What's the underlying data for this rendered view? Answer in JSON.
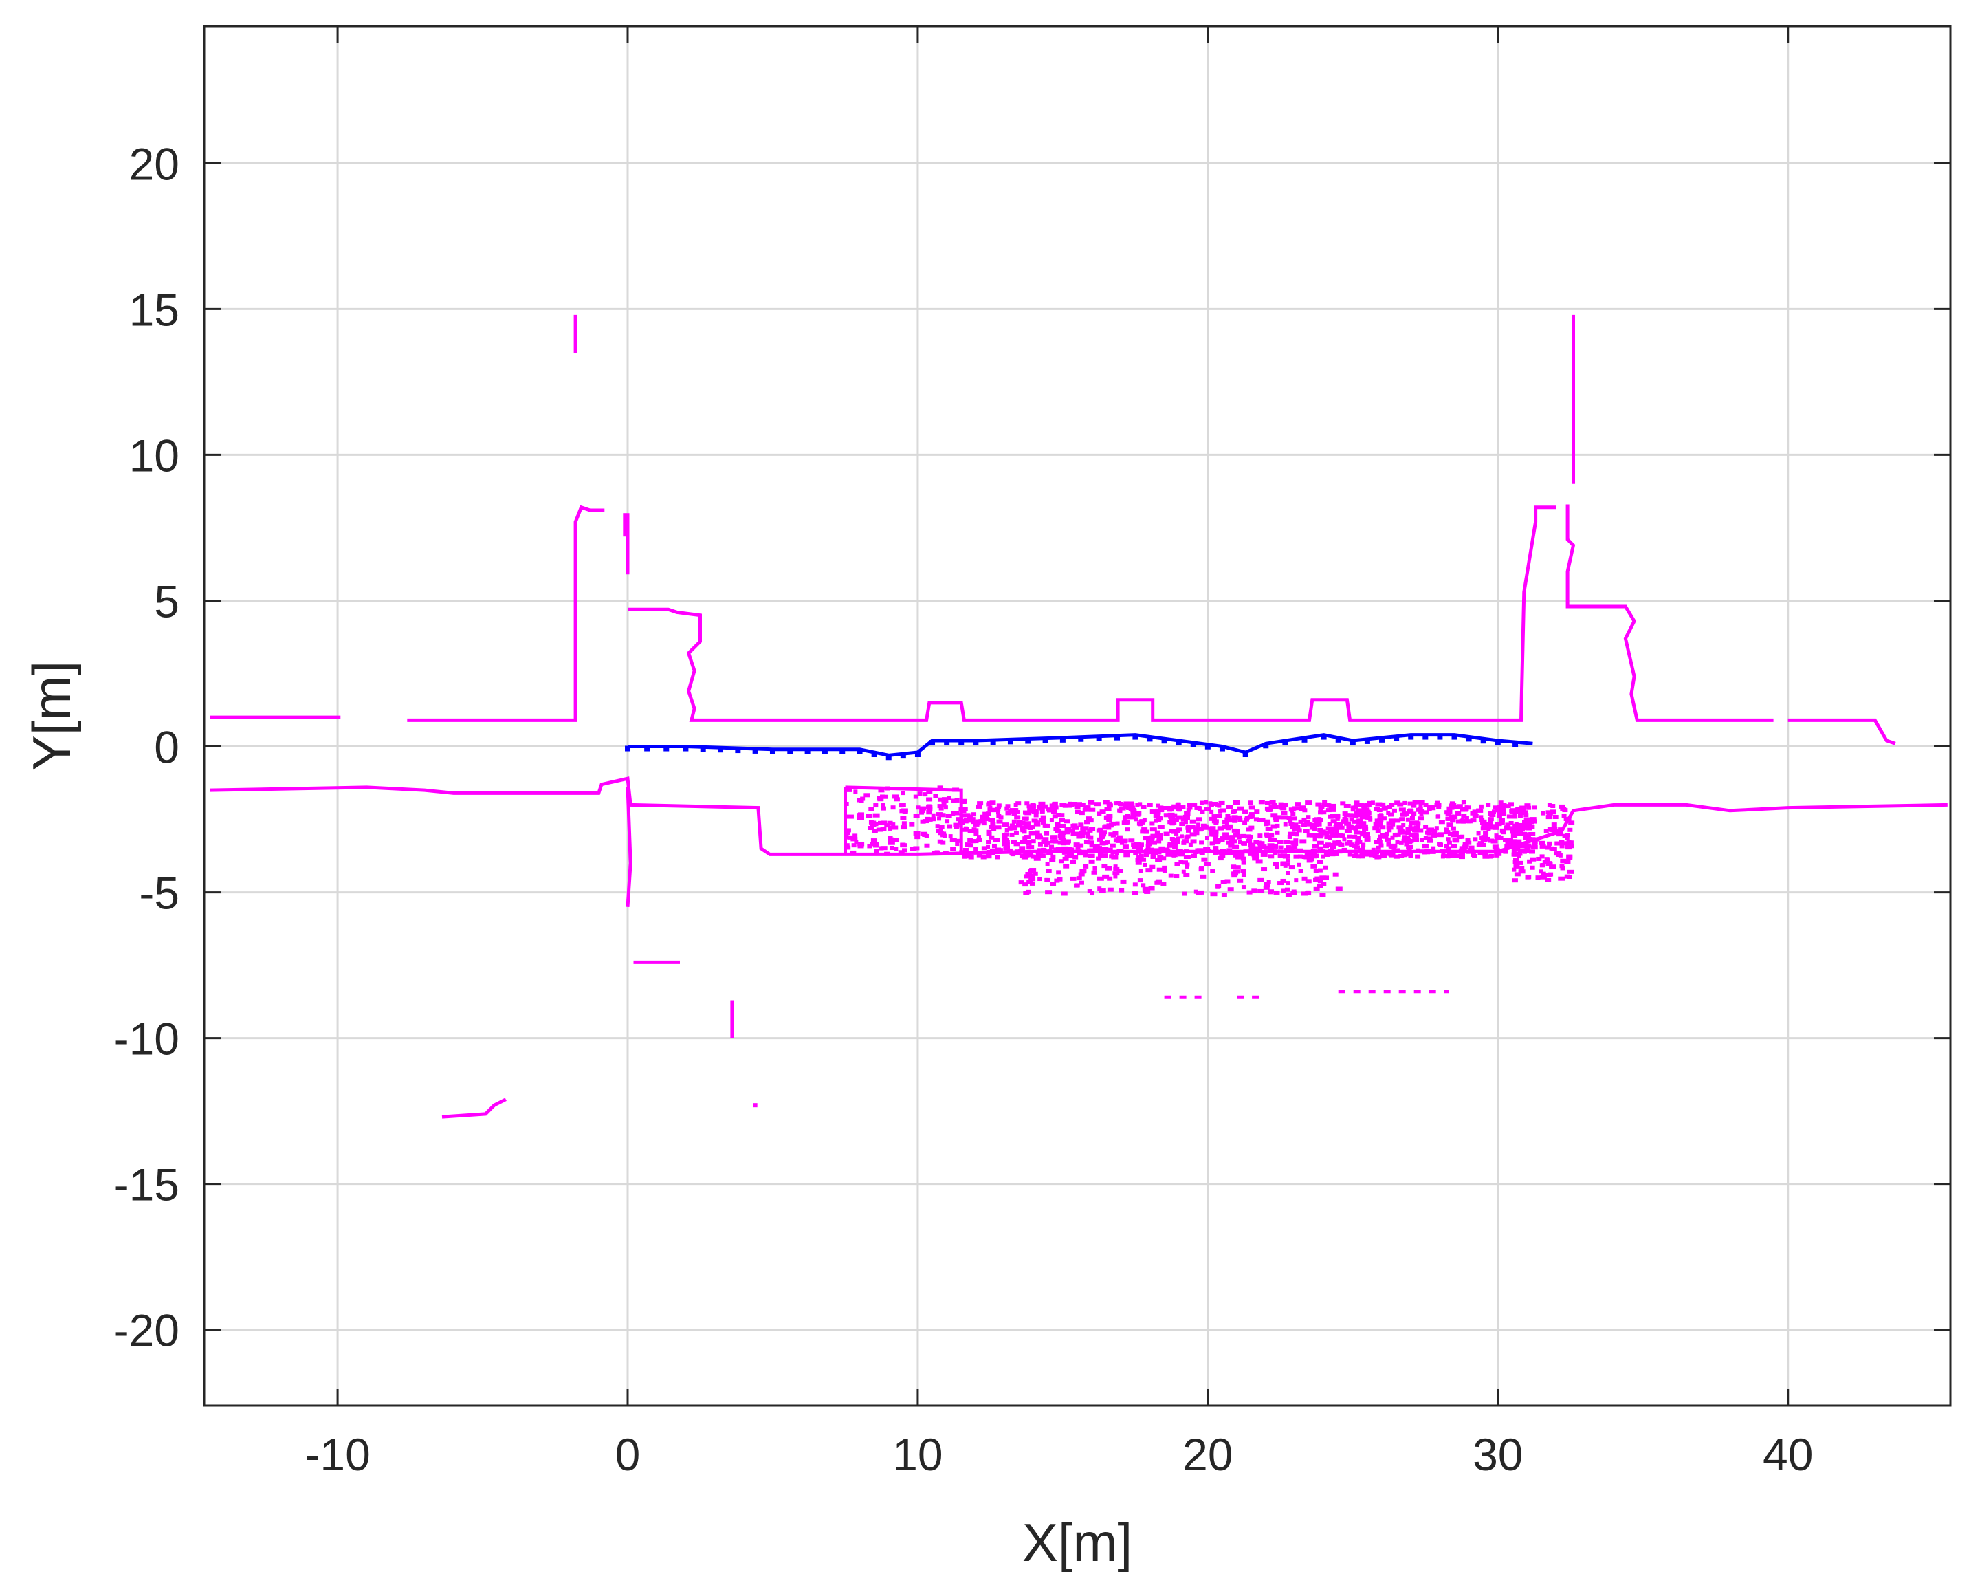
{
  "chart_data": {
    "type": "scatter",
    "title": "",
    "xlabel": "X[m]",
    "ylabel": "Y[m]",
    "xlim": [
      -14.6,
      45.6
    ],
    "ylim": [
      -22.6,
      24.7
    ],
    "xticks": [
      -10,
      0,
      10,
      20,
      30,
      40
    ],
    "yticks": [
      -20,
      -15,
      -10,
      -5,
      0,
      5,
      10,
      15,
      20
    ],
    "grid": true,
    "legend": "none",
    "series": [
      {
        "role": "map-points",
        "color": "#ff00ff",
        "polylines": [
          [
            [
              -14.4,
              1.0
            ],
            [
              -9.9,
              1.0
            ]
          ],
          [
            [
              -7.6,
              0.9
            ],
            [
              -1.8,
              0.9
            ],
            [
              -1.8,
              7.7
            ],
            [
              -1.6,
              8.2
            ],
            [
              -1.3,
              8.1
            ],
            [
              -0.8,
              8.1
            ]
          ],
          [
            [
              -0.1,
              8.0
            ],
            [
              -0.1,
              7.2
            ]
          ],
          [
            [
              0.0,
              4.7
            ],
            [
              1.4,
              4.7
            ],
            [
              1.7,
              4.6
            ],
            [
              2.5,
              4.5
            ],
            [
              2.5,
              3.6
            ],
            [
              2.1,
              3.2
            ],
            [
              2.3,
              2.6
            ],
            [
              2.1,
              1.9
            ],
            [
              2.3,
              1.3
            ],
            [
              2.2,
              0.9
            ],
            [
              10.3,
              0.9
            ],
            [
              10.4,
              1.5
            ],
            [
              11.5,
              1.5
            ],
            [
              11.6,
              0.9
            ],
            [
              16.9,
              0.9
            ],
            [
              16.9,
              1.6
            ],
            [
              18.1,
              1.6
            ],
            [
              18.1,
              0.9
            ],
            [
              23.5,
              0.9
            ],
            [
              23.6,
              1.6
            ],
            [
              24.8,
              1.6
            ],
            [
              24.9,
              0.9
            ],
            [
              30.8,
              0.9
            ],
            [
              30.9,
              5.3
            ],
            [
              31.3,
              7.7
            ],
            [
              31.3,
              8.2
            ],
            [
              32.0,
              8.2
            ]
          ],
          [
            [
              0.0,
              8.0
            ],
            [
              0.0,
              5.9
            ]
          ],
          [
            [
              32.6,
              14.8
            ],
            [
              32.6,
              9.0
            ]
          ],
          [
            [
              32.4,
              8.3
            ],
            [
              32.4,
              7.1
            ],
            [
              32.6,
              6.9
            ],
            [
              32.4,
              6.0
            ],
            [
              32.4,
              4.8
            ],
            [
              34.4,
              4.8
            ],
            [
              34.7,
              4.3
            ],
            [
              34.4,
              3.7
            ],
            [
              34.7,
              2.4
            ],
            [
              34.6,
              1.8
            ],
            [
              34.8,
              0.9
            ],
            [
              39.5,
              0.9
            ]
          ],
          [
            [
              40.0,
              0.9
            ],
            [
              43.0,
              0.9
            ],
            [
              43.4,
              0.2
            ],
            [
              43.7,
              0.1
            ]
          ],
          [
            [
              -14.4,
              -1.5
            ],
            [
              -9.0,
              -1.4
            ],
            [
              -7.0,
              -1.5
            ],
            [
              -6.0,
              -1.6
            ],
            [
              -4.0,
              -1.6
            ],
            [
              -1.0,
              -1.6
            ],
            [
              -0.9,
              -1.3
            ],
            [
              0.0,
              -1.1
            ],
            [
              0.1,
              -2.0
            ],
            [
              4.5,
              -2.1
            ],
            [
              4.6,
              -3.5
            ],
            [
              4.9,
              -3.7
            ],
            [
              10.0,
              -3.7
            ],
            [
              14.0,
              -3.6
            ],
            [
              30.0,
              -3.6
            ],
            [
              32.2,
              -2.9
            ],
            [
              32.6,
              -2.2
            ],
            [
              34.0,
              -2.0
            ],
            [
              36.5,
              -2.0
            ],
            [
              38.0,
              -2.2
            ],
            [
              40.0,
              -2.1
            ],
            [
              45.5,
              -2.0
            ]
          ],
          [
            [
              0.0,
              -1.4
            ],
            [
              0.1,
              -4.0
            ],
            [
              0.0,
              -5.5
            ]
          ],
          [
            [
              7.5,
              -1.4
            ],
            [
              7.5,
              -3.7
            ]
          ],
          [
            [
              7.5,
              -1.4
            ],
            [
              11.5,
              -1.5
            ],
            [
              11.5,
              -3.7
            ]
          ],
          [
            [
              0.2,
              -7.4
            ],
            [
              1.8,
              -7.4
            ]
          ],
          [
            [
              3.6,
              -8.7
            ],
            [
              3.6,
              -10.0
            ]
          ],
          [
            [
              -6.4,
              -12.7
            ],
            [
              -4.9,
              -12.6
            ],
            [
              -4.6,
              -12.3
            ],
            [
              -4.2,
              -12.1
            ]
          ],
          [
            [
              -1.8,
              14.8
            ],
            [
              -1.8,
              13.5
            ]
          ],
          [
            [
              4.4,
              -12.3
            ],
            [
              4.4,
              -12.3
            ]
          ]
        ],
        "clouds": [
          {
            "x": [
              7.5,
              11.6
            ],
            "y": [
              -3.7,
              -1.4
            ],
            "n": 170
          },
          {
            "x": [
              11.6,
              31.0
            ],
            "y": [
              -3.8,
              -1.9
            ],
            "n": 1300
          },
          {
            "x": [
              13.5,
              24.5
            ],
            "y": [
              -5.1,
              -3.5
            ],
            "n": 220
          },
          {
            "x": [
              30.5,
              32.5
            ],
            "y": [
              -4.6,
              -2.0
            ],
            "n": 150
          }
        ],
        "dash_segments": [
          [
            [
              18.5,
              -8.6
            ],
            [
              20.0,
              -8.6
            ]
          ],
          [
            [
              21.0,
              -8.6
            ],
            [
              22.0,
              -8.6
            ]
          ],
          [
            [
              24.5,
              -8.4
            ],
            [
              28.3,
              -8.4
            ]
          ]
        ]
      },
      {
        "role": "trajectory",
        "color": "#0000ff",
        "values": [
          [
            0.0,
            0.0
          ],
          [
            2.0,
            0.0
          ],
          [
            5.0,
            -0.1
          ],
          [
            8.0,
            -0.1
          ],
          [
            9.0,
            -0.3
          ],
          [
            10.0,
            -0.2
          ],
          [
            10.5,
            0.2
          ],
          [
            12.0,
            0.2
          ],
          [
            15.0,
            0.3
          ],
          [
            17.5,
            0.4
          ],
          [
            19.0,
            0.2
          ],
          [
            20.5,
            0.0
          ],
          [
            21.3,
            -0.2
          ],
          [
            22.0,
            0.1
          ],
          [
            24.0,
            0.4
          ],
          [
            25.0,
            0.2
          ],
          [
            26.0,
            0.3
          ],
          [
            27.0,
            0.4
          ],
          [
            28.5,
            0.4
          ],
          [
            30.0,
            0.2
          ],
          [
            31.2,
            0.1
          ]
        ]
      }
    ]
  }
}
